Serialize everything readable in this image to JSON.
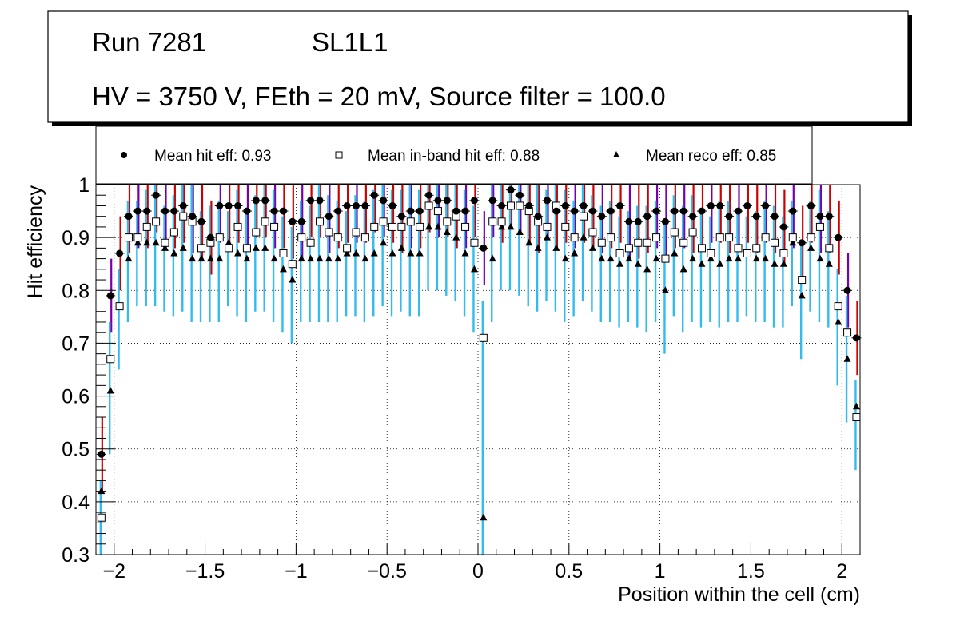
{
  "header": {
    "run": "Run 7281",
    "layer": "SL1L1",
    "conditions": "HV = 3750 V, FEth = 20 mV, Source filter = 100.0"
  },
  "colors": {
    "hit_error": "#cc0000",
    "hit_error_alt": "#7700aa",
    "inband_error": "#33bbee",
    "reco_error": "#33bbee",
    "marker": "#000000",
    "grid": "#000000",
    "axis": "#000000"
  },
  "chart_data": {
    "type": "scatter",
    "title": "",
    "xlabel": "Position within the cell (cm)",
    "ylabel": "Hit efficiency",
    "xlim": [
      -2.1,
      2.1
    ],
    "ylim": [
      0.3,
      1.0
    ],
    "grid": true,
    "x_ticks": [
      -2,
      -1.5,
      -1,
      -0.5,
      0,
      0.5,
      1,
      1.5,
      2
    ],
    "x_tick_labels": [
      "−2",
      "−1.5",
      "−1",
      "−0.5",
      "0",
      "0.5",
      "1",
      "1.5",
      "2"
    ],
    "y_ticks": [
      0.3,
      0.4,
      0.5,
      0.6,
      0.7,
      0.8,
      0.9,
      1.0
    ],
    "y_tick_labels": [
      "0.3",
      "0.4",
      "0.5",
      "0.6",
      "0.7",
      "0.8",
      "0.9",
      "1"
    ],
    "legend": {
      "placement": "top",
      "entries": [
        {
          "marker": "circle",
          "label": "Mean hit  eff: 0.93"
        },
        {
          "marker": "open-square",
          "label": "Mean in-band hit eff: 0.88"
        },
        {
          "marker": "triangle",
          "label": "Mean reco eff: 0.85"
        }
      ]
    },
    "x": [
      -2.07,
      -2.02,
      -1.97,
      -1.92,
      -1.87,
      -1.82,
      -1.77,
      -1.72,
      -1.67,
      -1.62,
      -1.57,
      -1.52,
      -1.47,
      -1.42,
      -1.37,
      -1.32,
      -1.27,
      -1.22,
      -1.17,
      -1.12,
      -1.07,
      -1.02,
      -0.97,
      -0.92,
      -0.87,
      -0.82,
      -0.77,
      -0.72,
      -0.67,
      -0.62,
      -0.57,
      -0.52,
      -0.47,
      -0.42,
      -0.37,
      -0.32,
      -0.27,
      -0.22,
      -0.17,
      -0.12,
      -0.07,
      -0.02,
      0.03,
      0.08,
      0.13,
      0.18,
      0.23,
      0.28,
      0.33,
      0.38,
      0.43,
      0.48,
      0.53,
      0.58,
      0.63,
      0.68,
      0.73,
      0.78,
      0.83,
      0.88,
      0.93,
      0.98,
      1.03,
      1.08,
      1.13,
      1.18,
      1.23,
      1.28,
      1.33,
      1.38,
      1.43,
      1.48,
      1.53,
      1.58,
      1.63,
      1.68,
      1.73,
      1.78,
      1.83,
      1.88,
      1.93,
      1.98,
      2.03,
      2.08
    ],
    "series": [
      {
        "name": "Mean hit eff",
        "marker": "circle",
        "values": [
          0.49,
          0.79,
          0.87,
          0.94,
          0.95,
          0.95,
          0.98,
          0.95,
          0.95,
          0.96,
          0.94,
          0.93,
          0.9,
          0.96,
          0.96,
          0.96,
          0.95,
          0.97,
          0.97,
          0.95,
          0.95,
          0.93,
          0.93,
          0.97,
          0.97,
          0.94,
          0.95,
          0.96,
          0.96,
          0.96,
          0.98,
          0.97,
          0.96,
          0.94,
          0.95,
          0.95,
          0.98,
          0.97,
          0.97,
          0.95,
          0.95,
          0.97,
          0.88,
          0.97,
          0.96,
          0.99,
          0.98,
          0.96,
          0.94,
          0.97,
          0.95,
          0.96,
          0.95,
          0.96,
          0.95,
          0.94,
          0.95,
          0.96,
          0.93,
          0.93,
          0.94,
          0.95,
          0.93,
          0.95,
          0.95,
          0.94,
          0.95,
          0.96,
          0.96,
          0.94,
          0.95,
          0.96,
          0.94,
          0.96,
          0.94,
          0.92,
          0.95,
          0.89,
          0.96,
          0.94,
          0.94,
          0.9,
          0.8,
          0.71
        ]
      },
      {
        "name": "Mean in-band hit eff",
        "marker": "open-square",
        "values": [
          0.37,
          0.67,
          0.77,
          0.9,
          0.9,
          0.92,
          0.93,
          0.89,
          0.91,
          0.94,
          0.93,
          0.88,
          0.89,
          0.9,
          0.88,
          0.92,
          0.88,
          0.91,
          0.93,
          0.92,
          0.87,
          0.85,
          0.9,
          0.89,
          0.93,
          0.91,
          0.9,
          0.88,
          0.91,
          0.9,
          0.92,
          0.93,
          0.92,
          0.92,
          0.93,
          0.92,
          0.96,
          0.95,
          0.93,
          0.94,
          0.92,
          0.89,
          0.71,
          0.93,
          0.93,
          0.96,
          0.96,
          0.95,
          0.93,
          0.92,
          0.96,
          0.92,
          0.9,
          0.94,
          0.91,
          0.89,
          0.9,
          0.87,
          0.88,
          0.89,
          0.89,
          0.9,
          0.86,
          0.91,
          0.89,
          0.91,
          0.88,
          0.87,
          0.9,
          0.9,
          0.88,
          0.87,
          0.88,
          0.9,
          0.89,
          0.87,
          0.9,
          0.82,
          0.9,
          0.92,
          0.88,
          0.77,
          0.72,
          0.56
        ]
      },
      {
        "name": "Mean reco eff",
        "marker": "triangle",
        "values": [
          0.42,
          0.61,
          0.77,
          0.86,
          0.89,
          0.89,
          0.89,
          0.88,
          0.87,
          0.88,
          0.86,
          0.86,
          0.86,
          0.86,
          0.89,
          0.87,
          0.86,
          0.88,
          0.88,
          0.86,
          0.84,
          0.82,
          0.86,
          0.86,
          0.86,
          0.86,
          0.86,
          0.87,
          0.87,
          0.86,
          0.87,
          0.89,
          0.87,
          0.88,
          0.87,
          0.87,
          0.92,
          0.92,
          0.91,
          0.9,
          0.87,
          0.84,
          0.37,
          0.86,
          0.92,
          0.92,
          0.91,
          0.89,
          0.88,
          0.9,
          0.88,
          0.86,
          0.87,
          0.9,
          0.88,
          0.86,
          0.86,
          0.85,
          0.86,
          0.85,
          0.84,
          0.86,
          0.8,
          0.87,
          0.84,
          0.86,
          0.85,
          0.86,
          0.85,
          0.86,
          0.86,
          0.87,
          0.86,
          0.86,
          0.85,
          0.85,
          0.89,
          0.79,
          0.88,
          0.86,
          0.85,
          0.74,
          0.67,
          0.58
        ]
      }
    ],
    "hit_error_color_alt_points": [
      0.03,
      1.03,
      2.03
    ],
    "error_bar": {
      "hit_halfwidth": 0.07,
      "band_down": 0.14
    }
  }
}
